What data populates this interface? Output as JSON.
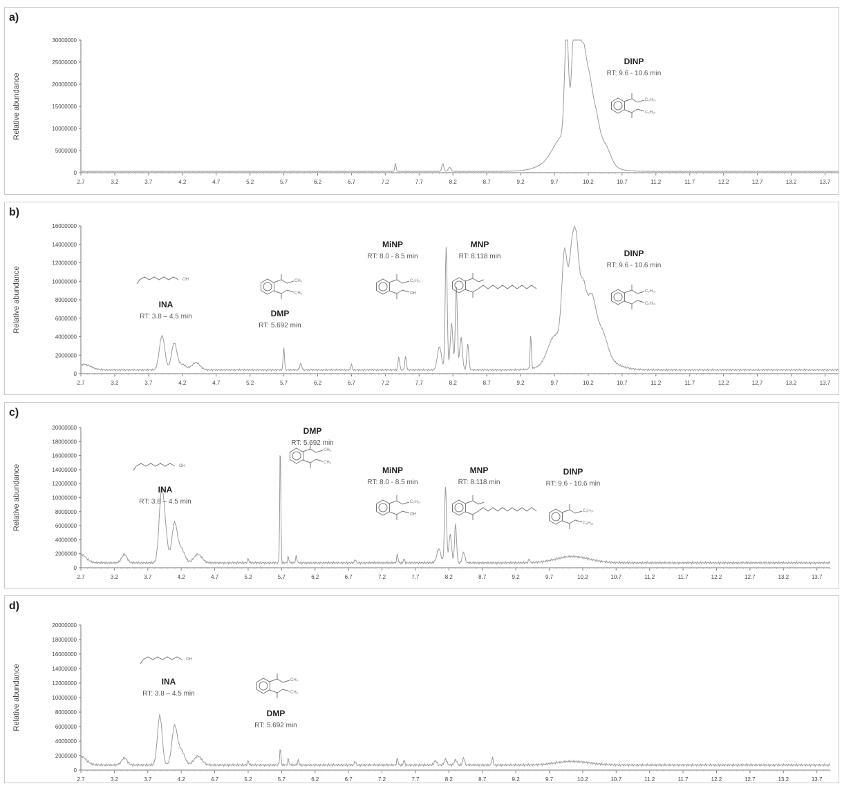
{
  "colors": {
    "trace": "#9a9a9a",
    "axis": "#777777",
    "frame": "#c8c8c8"
  },
  "chart_data": [
    {
      "type": "line",
      "panel_label": "a)",
      "ylabel": "Relative abundance",
      "ylim": [
        0,
        30000000
      ],
      "yticks": [
        "30000000",
        "25000000",
        "20000000",
        "15000000",
        "10000000",
        "5000000",
        "0"
      ],
      "xlim": [
        2.7,
        13.9
      ],
      "xticks": [
        "2.7",
        "3.2",
        "3.7",
        "4.2",
        "4.7",
        "5.2",
        "5.7",
        "6.2",
        "6.7",
        "7.2",
        "7.7",
        "8.2",
        "8.7",
        "9.2",
        "9.7",
        "10.2",
        "10.7",
        "11.2",
        "11.7",
        "12.2",
        "12.7",
        "13.2",
        "13.7"
      ],
      "baseline": 300000,
      "peaks": [
        [
          7.35,
          1800000,
          0.01
        ],
        [
          8.05,
          1700000,
          0.015
        ],
        [
          8.15,
          900000,
          0.02
        ],
        [
          9.8,
          3000000,
          0.12
        ],
        [
          9.88,
          24000000,
          0.03
        ],
        [
          9.98,
          22000000,
          0.03
        ],
        [
          10.05,
          24000000,
          0.03
        ],
        [
          10.12,
          18000000,
          0.04
        ],
        [
          10.2,
          14000000,
          0.05
        ],
        [
          10.3,
          9000000,
          0.06
        ],
        [
          10.45,
          4000000,
          0.08
        ],
        [
          10.0,
          6000000,
          0.3
        ]
      ],
      "annotations": [
        {
          "name": "DINP",
          "rt": "RT: 9.6 - 10.6 min",
          "structure": "dinp"
        }
      ]
    },
    {
      "type": "line",
      "panel_label": "b)",
      "ylabel": "Relative abundance",
      "ylim": [
        0,
        16000000
      ],
      "yticks": [
        "16000000",
        "14000000",
        "12000000",
        "10000000",
        "8000000",
        "6000000",
        "4000000",
        "2000000",
        "0"
      ],
      "xlim": [
        2.7,
        13.9
      ],
      "xticks": [
        "2.7",
        "3.2",
        "3.7",
        "4.2",
        "4.7",
        "5.2",
        "5.7",
        "6.2",
        "6.7",
        "7.2",
        "7.7",
        "8.2",
        "8.7",
        "9.2",
        "9.7",
        "10.2",
        "10.7",
        "11.2",
        "11.7",
        "12.2",
        "12.7",
        "13.2",
        "13.7"
      ],
      "baseline": 400000,
      "peaks": [
        [
          2.75,
          600000,
          0.1
        ],
        [
          3.9,
          3700000,
          0.04
        ],
        [
          4.08,
          2900000,
          0.04
        ],
        [
          4.2,
          600000,
          0.05
        ],
        [
          4.4,
          800000,
          0.06
        ],
        [
          5.7,
          2400000,
          0.01
        ],
        [
          5.95,
          700000,
          0.015
        ],
        [
          6.7,
          600000,
          0.01
        ],
        [
          7.4,
          1400000,
          0.012
        ],
        [
          7.5,
          1400000,
          0.012
        ],
        [
          8.0,
          2500000,
          0.03
        ],
        [
          8.1,
          13200000,
          0.015
        ],
        [
          8.18,
          5000000,
          0.02
        ],
        [
          8.25,
          9000000,
          0.015
        ],
        [
          8.32,
          3500000,
          0.02
        ],
        [
          8.42,
          2800000,
          0.015
        ],
        [
          9.35,
          3600000,
          0.01
        ],
        [
          9.85,
          9800000,
          0.04
        ],
        [
          9.95,
          8500000,
          0.04
        ],
        [
          10.02,
          9500000,
          0.04
        ],
        [
          10.12,
          6000000,
          0.05
        ],
        [
          10.25,
          5000000,
          0.06
        ],
        [
          10.4,
          2500000,
          0.08
        ],
        [
          9.7,
          2500000,
          0.1
        ],
        [
          10.1,
          3000000,
          0.3
        ]
      ],
      "annotations": [
        {
          "name": "INA",
          "rt": "RT: 3.8 – 4.5 min",
          "structure": "ina"
        },
        {
          "name": "DMP",
          "rt": "RT: 5.692 min",
          "structure": "dmp"
        },
        {
          "name": "MiNP",
          "rt": "RT: 8.0 - 8.5 min",
          "structure": "minp"
        },
        {
          "name": "MNP",
          "rt": "RT: 8.118 min",
          "structure": "mnp"
        },
        {
          "name": "DINP",
          "rt": "RT: 9.6 - 10.6 min",
          "structure": "dinp"
        }
      ]
    },
    {
      "type": "line",
      "panel_label": "c)",
      "ylabel": "Relative abundance",
      "ylim": [
        0,
        20000000
      ],
      "yticks": [
        "20000000",
        "18000000",
        "16000000",
        "14000000",
        "12000000",
        "10000000",
        "8000000",
        "6000000",
        "4000000",
        "2000000",
        "0"
      ],
      "xlim": [
        2.7,
        13.9
      ],
      "xticks": [
        "2.7",
        "3.2",
        "3.7",
        "4.2",
        "4.7",
        "5.2",
        "5.7",
        "6.2",
        "6.7",
        "7.2",
        "7.7",
        "8.2",
        "8.7",
        "9.2",
        "9.7",
        "10.2",
        "10.7",
        "11.2",
        "11.7",
        "12.2",
        "12.7",
        "13.2",
        "13.7"
      ],
      "baseline": 700000,
      "peaks": [
        [
          2.7,
          1200000,
          0.08
        ],
        [
          3.35,
          1200000,
          0.04
        ],
        [
          3.9,
          8000000,
          0.035
        ],
        [
          3.95,
          5000000,
          0.04
        ],
        [
          4.1,
          5500000,
          0.04
        ],
        [
          4.2,
          2000000,
          0.05
        ],
        [
          4.45,
          1200000,
          0.06
        ],
        [
          5.2,
          600000,
          0.01
        ],
        [
          5.68,
          17200000,
          0.008
        ],
        [
          5.8,
          800000,
          0.01
        ],
        [
          5.92,
          1000000,
          0.01
        ],
        [
          6.8,
          500000,
          0.01
        ],
        [
          7.43,
          1200000,
          0.01
        ],
        [
          7.53,
          600000,
          0.01
        ],
        [
          8.05,
          2000000,
          0.03
        ],
        [
          8.15,
          10800000,
          0.015
        ],
        [
          8.22,
          4000000,
          0.02
        ],
        [
          8.3,
          5500000,
          0.015
        ],
        [
          8.42,
          1500000,
          0.02
        ],
        [
          9.4,
          500000,
          0.01
        ],
        [
          10.05,
          900000,
          0.25
        ]
      ],
      "annotations": [
        {
          "name": "INA",
          "rt": "RT: 3.8 – 4.5 min",
          "structure": "ina"
        },
        {
          "name": "DMP",
          "rt": "RT: 5.692 min",
          "structure": "dmp"
        },
        {
          "name": "MiNP",
          "rt": "RT: 8.0 - 8.5 min",
          "structure": "minp"
        },
        {
          "name": "MNP",
          "rt": "RT: 8.118 min",
          "structure": "mnp"
        },
        {
          "name": "DINP",
          "rt": "RT: 9.6 - 10.6 min",
          "structure": "dinp"
        }
      ]
    },
    {
      "type": "line",
      "panel_label": "d)",
      "ylabel": "Relative abundance",
      "ylim": [
        0,
        20000000
      ],
      "yticks": [
        "20000000",
        "18000000",
        "16000000",
        "14000000",
        "12000000",
        "10000000",
        "8000000",
        "6000000",
        "4000000",
        "2000000",
        "0"
      ],
      "xlim": [
        2.7,
        13.9
      ],
      "xticks": [
        "2.7",
        "3.2",
        "3.7",
        "4.2",
        "4.7",
        "5.2",
        "5.7",
        "6.2",
        "6.7",
        "7.2",
        "7.7",
        "8.2",
        "8.7",
        "9.2",
        "9.7",
        "10.2",
        "10.7",
        "11.2",
        "11.7",
        "12.2",
        "12.7",
        "13.2",
        "13.7"
      ],
      "baseline": 700000,
      "peaks": [
        [
          2.7,
          1200000,
          0.08
        ],
        [
          3.35,
          1000000,
          0.04
        ],
        [
          3.88,
          6800000,
          0.035
        ],
        [
          4.1,
          5200000,
          0.04
        ],
        [
          4.2,
          2000000,
          0.05
        ],
        [
          4.45,
          1200000,
          0.06
        ],
        [
          5.2,
          600000,
          0.01
        ],
        [
          5.68,
          2200000,
          0.01
        ],
        [
          5.8,
          800000,
          0.01
        ],
        [
          5.95,
          700000,
          0.01
        ],
        [
          6.8,
          600000,
          0.01
        ],
        [
          7.43,
          900000,
          0.01
        ],
        [
          7.53,
          700000,
          0.01
        ],
        [
          8.0,
          600000,
          0.02
        ],
        [
          8.15,
          800000,
          0.02
        ],
        [
          8.3,
          700000,
          0.02
        ],
        [
          8.42,
          1000000,
          0.015
        ],
        [
          8.85,
          1100000,
          0.01
        ],
        [
          10.05,
          500000,
          0.25
        ]
      ],
      "annotations": [
        {
          "name": "INA",
          "rt": "RT: 3.8 – 4.5 min",
          "structure": "ina"
        },
        {
          "name": "DMP",
          "rt": "RT: 5.692 min",
          "structure": "dmp"
        }
      ]
    }
  ]
}
